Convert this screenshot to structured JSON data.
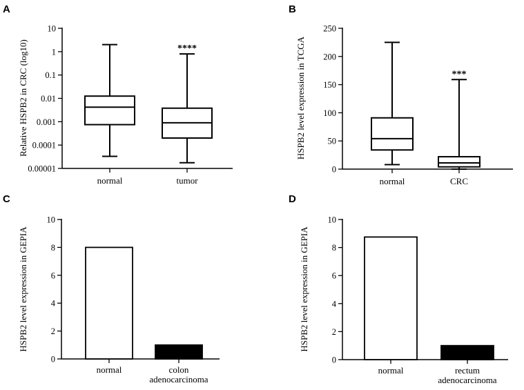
{
  "chart_data": [
    {
      "panel": "A",
      "type": "box",
      "title": "",
      "ylabel": "Relative HSPB2 in CRC (log10)",
      "xlabel": "",
      "yscale": "log",
      "ylim": [
        1e-05,
        10
      ],
      "yticks": [
        1e-05,
        0.0001,
        0.001,
        0.01,
        0.1,
        1,
        10
      ],
      "ytick_labels": [
        "0.00001",
        "0.0001",
        "0.001",
        "0.01",
        "0.1",
        "1",
        "10"
      ],
      "categories": [
        "normal",
        "tumor"
      ],
      "boxes": [
        {
          "name": "normal",
          "min": 3.3e-05,
          "q1": 0.00075,
          "median": 0.0042,
          "q3": 0.0125,
          "max": 2.0
        },
        {
          "name": "tumor",
          "min": 1.75e-05,
          "q1": 0.0002,
          "median": 0.0009,
          "q3": 0.0038,
          "max": 0.8
        }
      ],
      "significance": {
        "category": "tumor",
        "label": "****"
      }
    },
    {
      "panel": "B",
      "type": "box",
      "title": "",
      "ylabel": "HSPB2 level expression in TCGA",
      "xlabel": "",
      "yscale": "linear",
      "ylim": [
        0,
        250
      ],
      "yticks": [
        0,
        50,
        100,
        150,
        200,
        250
      ],
      "ytick_labels": [
        "0",
        "50",
        "100",
        "150",
        "200",
        "250"
      ],
      "categories": [
        "normal",
        "CRC"
      ],
      "boxes": [
        {
          "name": "normal",
          "min": 8,
          "q1": 34,
          "median": 54,
          "q3": 91,
          "max": 225
        },
        {
          "name": "CRC",
          "min": 0,
          "q1": 4,
          "median": 11,
          "q3": 22,
          "max": 159
        }
      ],
      "significance": {
        "category": "CRC",
        "label": "***"
      }
    },
    {
      "panel": "C",
      "type": "bar",
      "title": "",
      "ylabel": "HSPB2 level expression in GEPIA",
      "xlabel": "",
      "ylim": [
        0,
        10
      ],
      "yticks": [
        0,
        2,
        4,
        6,
        8,
        10
      ],
      "ytick_labels": [
        "0",
        "2",
        "4",
        "6",
        "8",
        "10"
      ],
      "categories": [
        "normal",
        "colon adenocarcinoma"
      ],
      "category_lines": [
        [
          "normal"
        ],
        [
          "colon",
          "adenocarcinoma"
        ]
      ],
      "values": [
        8.0,
        1.0
      ],
      "fills": [
        "#ffffff",
        "#000000"
      ]
    },
    {
      "panel": "D",
      "type": "bar",
      "title": "",
      "ylabel": "HSPB2 level expression in GEPIA",
      "xlabel": "",
      "ylim": [
        0,
        10
      ],
      "yticks": [
        0,
        2,
        4,
        6,
        8,
        10
      ],
      "ytick_labels": [
        "0",
        "2",
        "4",
        "6",
        "8",
        "10"
      ],
      "categories": [
        "normal",
        "rectum adenocarcinoma"
      ],
      "category_lines": [
        [
          "normal"
        ],
        [
          "rectum",
          "adenocarcinoma"
        ]
      ],
      "values": [
        8.75,
        1.0
      ],
      "fills": [
        "#ffffff",
        "#000000"
      ]
    }
  ]
}
